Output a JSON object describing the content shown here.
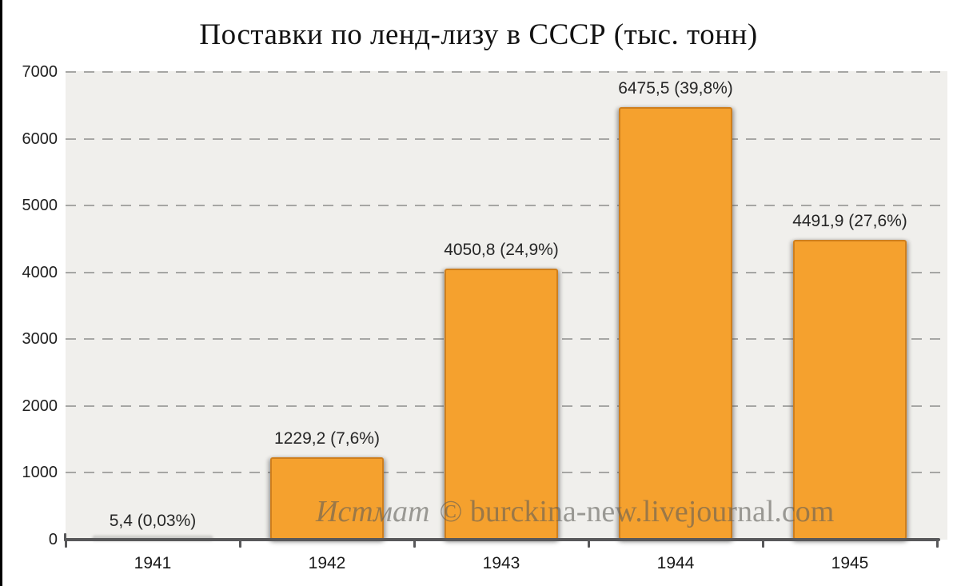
{
  "title": "Поставки по ленд-лизу в СССР (тыс. тонн)",
  "watermark": {
    "prefix": "Истмат",
    "rest": "© burckina-new.livejournal.com"
  },
  "y_axis": {
    "tick_labels": [
      "0",
      "1000",
      "2000",
      "3000",
      "4000",
      "5000",
      "6000",
      "7000"
    ]
  },
  "chart_data": {
    "type": "bar",
    "title": "Поставки по ленд-лизу в СССР (тыс. тонн)",
    "categories": [
      "1941",
      "1942",
      "1943",
      "1944",
      "1945"
    ],
    "values": [
      5.4,
      1229.2,
      4050.8,
      6475.5,
      4491.9
    ],
    "bar_labels": [
      "5,4 (0,03%)",
      "1229,2 (7,6%)",
      "4050,8 (24,9%)",
      "6475,5 (39,8%)",
      "4491,9 (27,6%)"
    ],
    "percent_share": [
      "0,03%",
      "7,6%",
      "24,9%",
      "39,8%",
      "27,6%"
    ],
    "xlabel": "",
    "ylabel": "",
    "ylim": [
      0,
      7000
    ],
    "yticks": [
      0,
      1000,
      2000,
      3000,
      4000,
      5000,
      6000,
      7000
    ],
    "grid": "horizontal-dashed",
    "legend": "none",
    "bar_color": "#F5A12E",
    "bar_border_color": "#CF7F1D",
    "plot_bg_color": "#F0EFEC",
    "axis_color": "#58585A",
    "gridline_color": "#A6A6A4"
  }
}
